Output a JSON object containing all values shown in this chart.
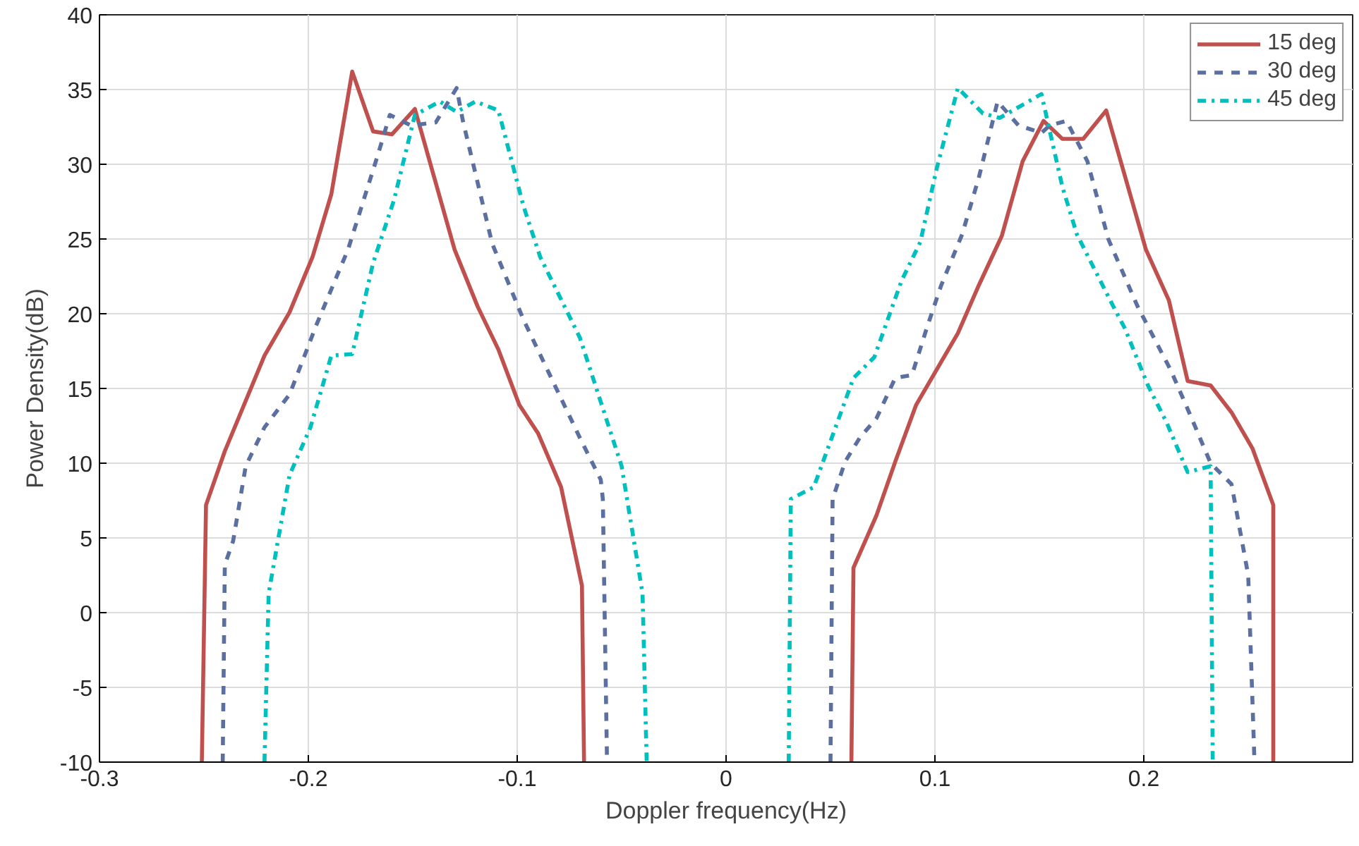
{
  "chart_data": {
    "type": "line",
    "xlabel": "Doppler frequency(Hz)",
    "ylabel": "Power Density(dB)",
    "xlim": [
      -0.3,
      0.3
    ],
    "ylim": [
      -10,
      40
    ],
    "xticks": [
      -0.3,
      -0.2,
      -0.1,
      0,
      0.1,
      0.2
    ],
    "yticks": [
      -10,
      -5,
      0,
      5,
      10,
      15,
      20,
      25,
      30,
      35,
      40
    ],
    "grid": true,
    "legend": "top right",
    "series": [
      {
        "name": "15 deg",
        "color": "#c0504d",
        "line_style": "solid",
        "x": [
          -0.251,
          -0.249,
          -0.24,
          -0.221,
          -0.209,
          -0.198,
          -0.189,
          -0.179,
          -0.169,
          -0.16,
          -0.149,
          -0.13,
          -0.119,
          -0.109,
          -0.099,
          -0.09,
          -0.079,
          -0.069,
          -0.068,
          0,
          0.06,
          0.061,
          0.072,
          0.081,
          0.091,
          0.111,
          0.121,
          0.132,
          0.142,
          0.152,
          0.161,
          0.171,
          0.182,
          0.201,
          0.212,
          0.221,
          0.232,
          0.242,
          0.252,
          0.262,
          0.262
        ],
        "values": [
          -10,
          7.2,
          10.8,
          17.2,
          20.1,
          23.8,
          28,
          36.2,
          32.2,
          32.0,
          33.7,
          24.3,
          20.5,
          17.6,
          13.9,
          12.0,
          8.4,
          1.8,
          -10,
          null,
          -10,
          3.0,
          6.5,
          10.1,
          13.9,
          18.7,
          21.9,
          25.2,
          30.2,
          32.9,
          31.7,
          31.7,
          33.6,
          24.3,
          20.9,
          15.5,
          15.2,
          13.4,
          11.0,
          7.2,
          -10
        ]
      },
      {
        "name": "30 deg",
        "color": "#5b6fa0",
        "line_style": "dashed",
        "x": [
          -0.241,
          -0.24,
          -0.236,
          -0.23,
          -0.221,
          -0.209,
          -0.196,
          -0.181,
          -0.167,
          -0.161,
          -0.151,
          -0.139,
          -0.129,
          -0.126,
          -0.112,
          -0.097,
          -0.083,
          -0.07,
          -0.06,
          -0.059,
          -0.057,
          0,
          0.05,
          0.051,
          0.057,
          0.064,
          0.072,
          0.081,
          0.089,
          0.096,
          0.103,
          0.113,
          0.121,
          0.13,
          0.14,
          0.151,
          0.155,
          0.163,
          0.173,
          0.183,
          0.197,
          0.213,
          0.222,
          0.232,
          0.242,
          0.25,
          0.253
        ],
        "values": [
          -10,
          3.2,
          4.8,
          9.8,
          12.4,
          14.6,
          19.3,
          24.3,
          30.5,
          33.3,
          32.6,
          32.8,
          35.1,
          32.9,
          24.7,
          19.6,
          15.5,
          11.7,
          8.9,
          7.6,
          -10,
          null,
          -10,
          7.6,
          10.1,
          11.7,
          13.0,
          15.7,
          15.9,
          19.0,
          21.9,
          25.3,
          29.1,
          34.2,
          32.6,
          32.1,
          32.6,
          32.9,
          30.2,
          25.0,
          20.5,
          16.2,
          13.3,
          10.0,
          8.6,
          2.5,
          -10
        ]
      },
      {
        "name": "45 deg",
        "color": "#00bfbf",
        "line_style": "dashdot",
        "x": [
          -0.221,
          -0.219,
          -0.209,
          -0.199,
          -0.189,
          -0.179,
          -0.169,
          -0.159,
          -0.149,
          -0.137,
          -0.129,
          -0.12,
          -0.109,
          -0.097,
          -0.089,
          -0.07,
          -0.05,
          -0.04,
          -0.038,
          0,
          0.03,
          0.031,
          0.042,
          0.061,
          0.071,
          0.084,
          0.093,
          0.101,
          0.111,
          0.123,
          0.131,
          0.151,
          0.161,
          0.168,
          0.185,
          0.191,
          0.202,
          0.211,
          0.221,
          0.232,
          0.233
        ],
        "values": [
          -10,
          1.3,
          9.2,
          12.4,
          17.2,
          17.3,
          23.4,
          27.6,
          33.3,
          34.2,
          33.5,
          34.2,
          33.6,
          27.2,
          23.8,
          18.4,
          9.8,
          1.3,
          -10,
          null,
          -10,
          7.6,
          8.4,
          15.7,
          17.1,
          22.2,
          24.8,
          29.8,
          35.1,
          33.4,
          33.1,
          34.7,
          28.5,
          25.3,
          20.6,
          19.0,
          15.2,
          12.7,
          9.4,
          9.8,
          -10
        ]
      }
    ]
  }
}
